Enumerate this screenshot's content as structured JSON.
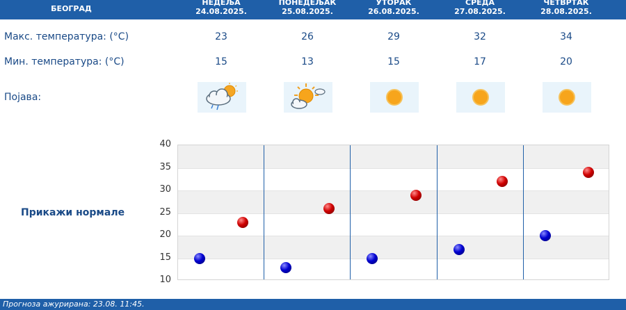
{
  "header": {
    "city": "БЕОГРАД",
    "days": [
      {
        "name": "НЕДЕЉА",
        "date": "24.08.2025."
      },
      {
        "name": "ПОНЕДЕЉАК",
        "date": "25.08.2025."
      },
      {
        "name": "УТОРАК",
        "date": "26.08.2025."
      },
      {
        "name": "СРЕДА",
        "date": "27.08.2025."
      },
      {
        "name": "ЧЕТВРТАК",
        "date": "28.08.2025."
      }
    ]
  },
  "rows": {
    "max_label": "Макс. температура: (°C)",
    "min_label": "Мин. температура: (°C)",
    "phenomenon_label": "Појава:"
  },
  "max_temps": [
    "23",
    "26",
    "29",
    "32",
    "34"
  ],
  "min_temps": [
    "15",
    "13",
    "15",
    "17",
    "20"
  ],
  "icons": [
    "cloud-rain-sun-icon",
    "sun-cloud-icon",
    "sun-icon",
    "sun-icon",
    "sun-icon"
  ],
  "chart_label": "Прикажи нормале",
  "chart_data": {
    "type": "scatter",
    "categories": [
      "24.08.2025.",
      "25.08.2025.",
      "26.08.2025.",
      "27.08.2025.",
      "28.08.2025."
    ],
    "series": [
      {
        "values": [
          23,
          26,
          29,
          32,
          34
        ],
        "color": "#d00000"
      },
      {
        "values": [
          15,
          13,
          15,
          17,
          20
        ],
        "color": "#0000d0"
      }
    ],
    "yticks": [
      "10",
      "15",
      "20",
      "25",
      "30",
      "35",
      "40"
    ],
    "ylim": [
      10,
      40
    ],
    "grid": true
  },
  "footer": "Прогноза ажурирана:  23.08.  11:45."
}
